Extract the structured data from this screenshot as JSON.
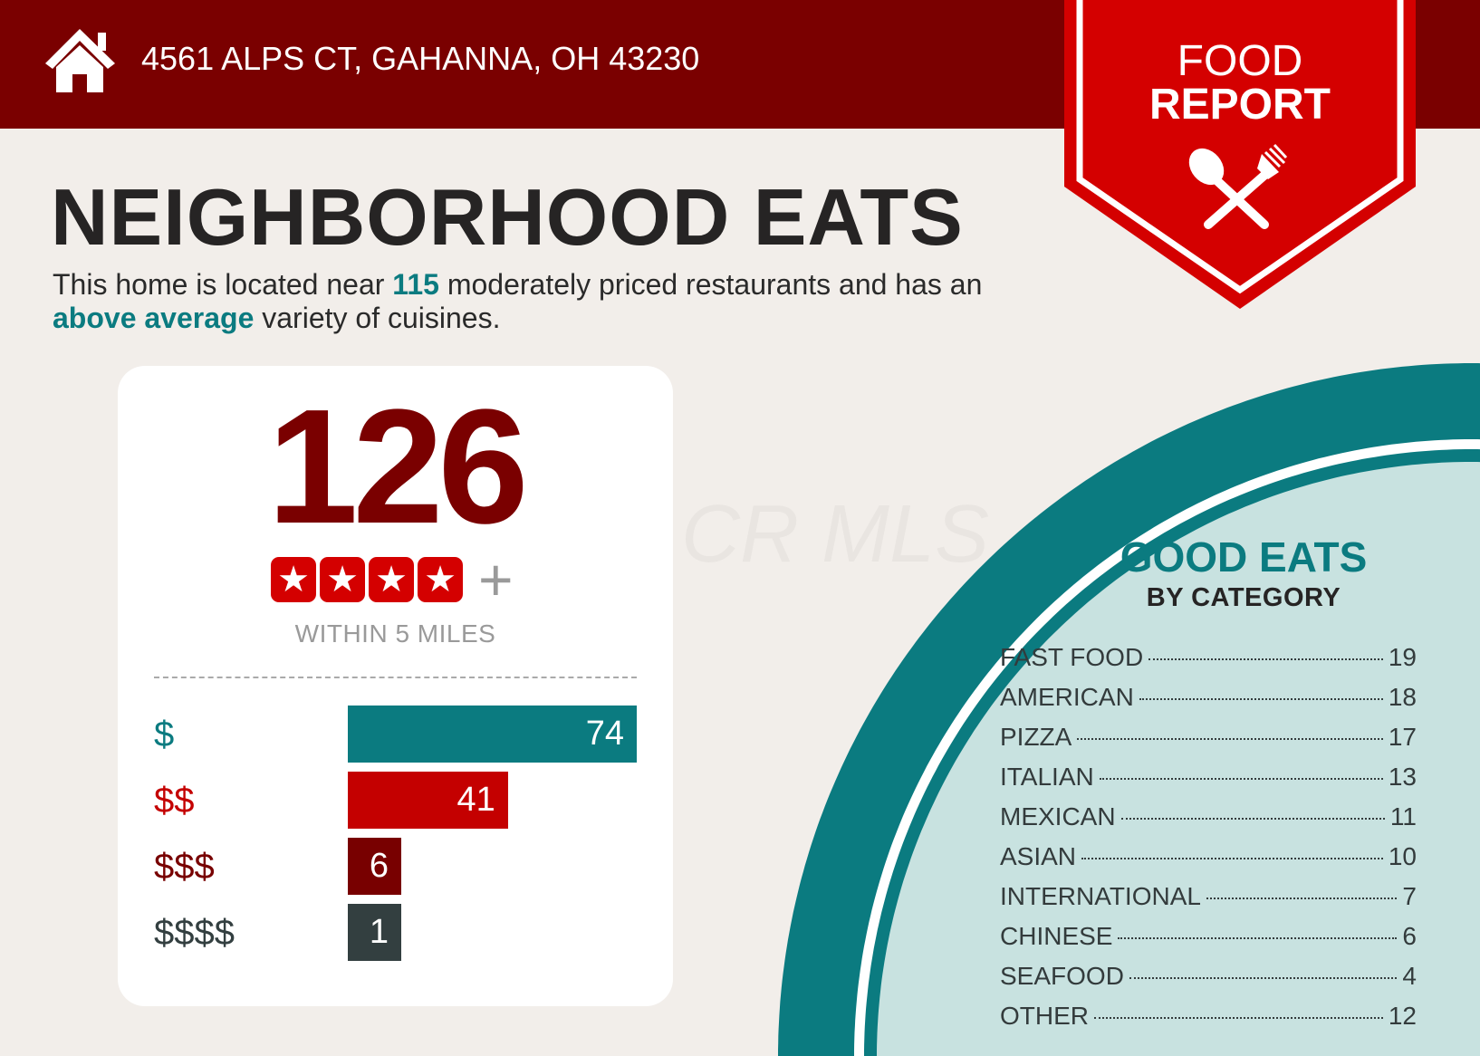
{
  "header": {
    "address": "4561 ALPS CT, GAHANNA, OH 43230",
    "icon": "home-icon"
  },
  "ribbon": {
    "line1": "FOOD",
    "line2": "REPORT",
    "icon": "spoon-fork-icon"
  },
  "title": "NEIGHBORHOOD EATS",
  "subtitle": {
    "part1": "This home is located near ",
    "highlight1": "115",
    "part2": " moderately priced restaurants and has an ",
    "highlight2": "above average",
    "part3": " variety of cuisines."
  },
  "summary": {
    "count": "126",
    "star_rating": 4,
    "star_icon": "star-icon",
    "plus": "+",
    "caption": "WITHIN 5 MILES"
  },
  "chart_data": {
    "type": "bar",
    "orientation": "horizontal",
    "categories": [
      "$",
      "$$",
      "$$$",
      "$$$$"
    ],
    "values": [
      74,
      41,
      6,
      1
    ],
    "colors": [
      "#0b7b80",
      "#c40000",
      "#780000",
      "#333f40"
    ]
  },
  "categories": {
    "title": "GOOD EATS",
    "subtitle": "BY CATEGORY",
    "items": [
      {
        "name": "FAST FOOD",
        "count": "19"
      },
      {
        "name": "AMERICAN",
        "count": "18"
      },
      {
        "name": "PIZZA",
        "count": "17"
      },
      {
        "name": "ITALIAN",
        "count": "13"
      },
      {
        "name": "MEXICAN",
        "count": "11"
      },
      {
        "name": "ASIAN",
        "count": "10"
      },
      {
        "name": "INTERNATIONAL",
        "count": "7"
      },
      {
        "name": "CHINESE",
        "count": "6"
      },
      {
        "name": "SEAFOOD",
        "count": "4"
      },
      {
        "name": "OTHER",
        "count": "12"
      }
    ]
  },
  "watermark": "CR MLS",
  "colors": {
    "dark_red": "#7a0000",
    "red": "#d40000",
    "teal": "#0b7b80",
    "light_teal": "#c8e2e0",
    "background": "#f2eeea"
  }
}
